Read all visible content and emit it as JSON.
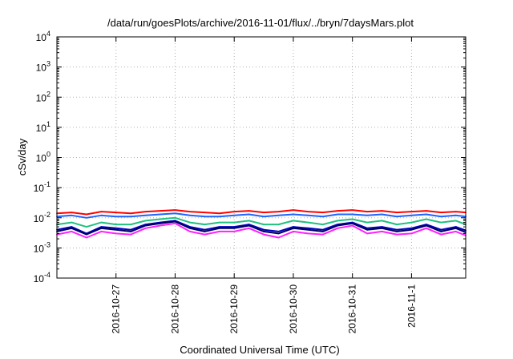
{
  "chart_data": {
    "type": "line",
    "title": "/data/run/goesPlots/archive/2016-11-01/flux/../bryn/7daysMars.plot",
    "xlabel": "Coordinated Universal Time (UTC)",
    "ylabel": "cSv/day",
    "yscale": "log",
    "ylim_exponents": [
      -4,
      4
    ],
    "yticks": [
      {
        "base": "10",
        "exp": "4"
      },
      {
        "base": "10",
        "exp": "3"
      },
      {
        "base": "10",
        "exp": "2"
      },
      {
        "base": "10",
        "exp": "1"
      },
      {
        "base": "10",
        "exp": "0"
      },
      {
        "base": "10",
        "exp": "-1"
      },
      {
        "base": "10",
        "exp": "-2"
      },
      {
        "base": "10",
        "exp": "-3"
      },
      {
        "base": "10",
        "exp": "-4"
      }
    ],
    "xlim": [
      "2016-10-26T00:00",
      "2016-11-01T22:00"
    ],
    "xticks": [
      "2016-10-27",
      "2016-10-28",
      "2016-10-29",
      "2016-10-30",
      "2016-10-31",
      "2016-11-1"
    ],
    "grid": true,
    "x": [
      "2016-10-26T00:00",
      "2016-10-26T06:00",
      "2016-10-26T12:00",
      "2016-10-26T18:00",
      "2016-10-27T00:00",
      "2016-10-27T06:00",
      "2016-10-27T12:00",
      "2016-10-27T18:00",
      "2016-10-28T00:00",
      "2016-10-28T06:00",
      "2016-10-28T12:00",
      "2016-10-28T18:00",
      "2016-10-29T00:00",
      "2016-10-29T06:00",
      "2016-10-29T12:00",
      "2016-10-29T18:00",
      "2016-10-30T00:00",
      "2016-10-30T06:00",
      "2016-10-30T12:00",
      "2016-10-30T18:00",
      "2016-10-31T00:00",
      "2016-10-31T06:00",
      "2016-10-31T12:00",
      "2016-10-31T18:00",
      "2016-11-01T00:00",
      "2016-11-01T06:00",
      "2016-11-01T12:00",
      "2016-11-01T18:00",
      "2016-11-01T22:00"
    ],
    "series": [
      {
        "color": "#ff0000",
        "values": [
          0.014,
          0.015,
          0.013,
          0.016,
          0.015,
          0.014,
          0.016,
          0.017,
          0.018,
          0.016,
          0.015,
          0.014,
          0.016,
          0.017,
          0.015,
          0.016,
          0.018,
          0.016,
          0.015,
          0.017,
          0.018,
          0.016,
          0.017,
          0.015,
          0.016,
          0.017,
          0.015,
          0.016,
          0.015
        ]
      },
      {
        "color": "#1e64ff",
        "values": [
          0.011,
          0.012,
          0.01,
          0.012,
          0.011,
          0.011,
          0.012,
          0.013,
          0.014,
          0.012,
          0.011,
          0.011,
          0.012,
          0.013,
          0.011,
          0.012,
          0.013,
          0.012,
          0.011,
          0.013,
          0.013,
          0.012,
          0.013,
          0.011,
          0.012,
          0.013,
          0.011,
          0.012,
          0.011
        ]
      },
      {
        "color": "#20c080",
        "values": [
          0.006,
          0.007,
          0.005,
          0.007,
          0.006,
          0.006,
          0.008,
          0.009,
          0.01,
          0.007,
          0.006,
          0.007,
          0.007,
          0.008,
          0.006,
          0.006,
          0.008,
          0.007,
          0.006,
          0.008,
          0.009,
          0.007,
          0.008,
          0.006,
          0.007,
          0.009,
          0.007,
          0.008,
          0.006
        ]
      },
      {
        "color": "#0000c0",
        "values": [
          0.004,
          0.005,
          0.003,
          0.005,
          0.0045,
          0.004,
          0.006,
          0.007,
          0.008,
          0.005,
          0.004,
          0.005,
          0.005,
          0.006,
          0.004,
          0.0035,
          0.005,
          0.0045,
          0.004,
          0.006,
          0.007,
          0.0045,
          0.005,
          0.004,
          0.0045,
          0.006,
          0.004,
          0.005,
          0.0038
        ]
      },
      {
        "color": "#000060",
        "values": [
          0.0035,
          0.0045,
          0.0028,
          0.0045,
          0.004,
          0.0035,
          0.0055,
          0.0065,
          0.0075,
          0.0045,
          0.0035,
          0.0045,
          0.0045,
          0.0055,
          0.0035,
          0.003,
          0.0045,
          0.004,
          0.0035,
          0.0055,
          0.0065,
          0.004,
          0.0045,
          0.0035,
          0.004,
          0.0055,
          0.0035,
          0.0045,
          0.0033
        ]
      },
      {
        "color": "#ff20ff",
        "values": [
          0.0028,
          0.0035,
          0.0022,
          0.0035,
          0.003,
          0.0028,
          0.0045,
          0.0055,
          0.0065,
          0.0035,
          0.0028,
          0.0035,
          0.0035,
          0.0045,
          0.0028,
          0.0022,
          0.0035,
          0.003,
          0.0028,
          0.0045,
          0.0055,
          0.003,
          0.0035,
          0.0028,
          0.003,
          0.0045,
          0.0028,
          0.0035,
          0.0026
        ]
      }
    ]
  }
}
